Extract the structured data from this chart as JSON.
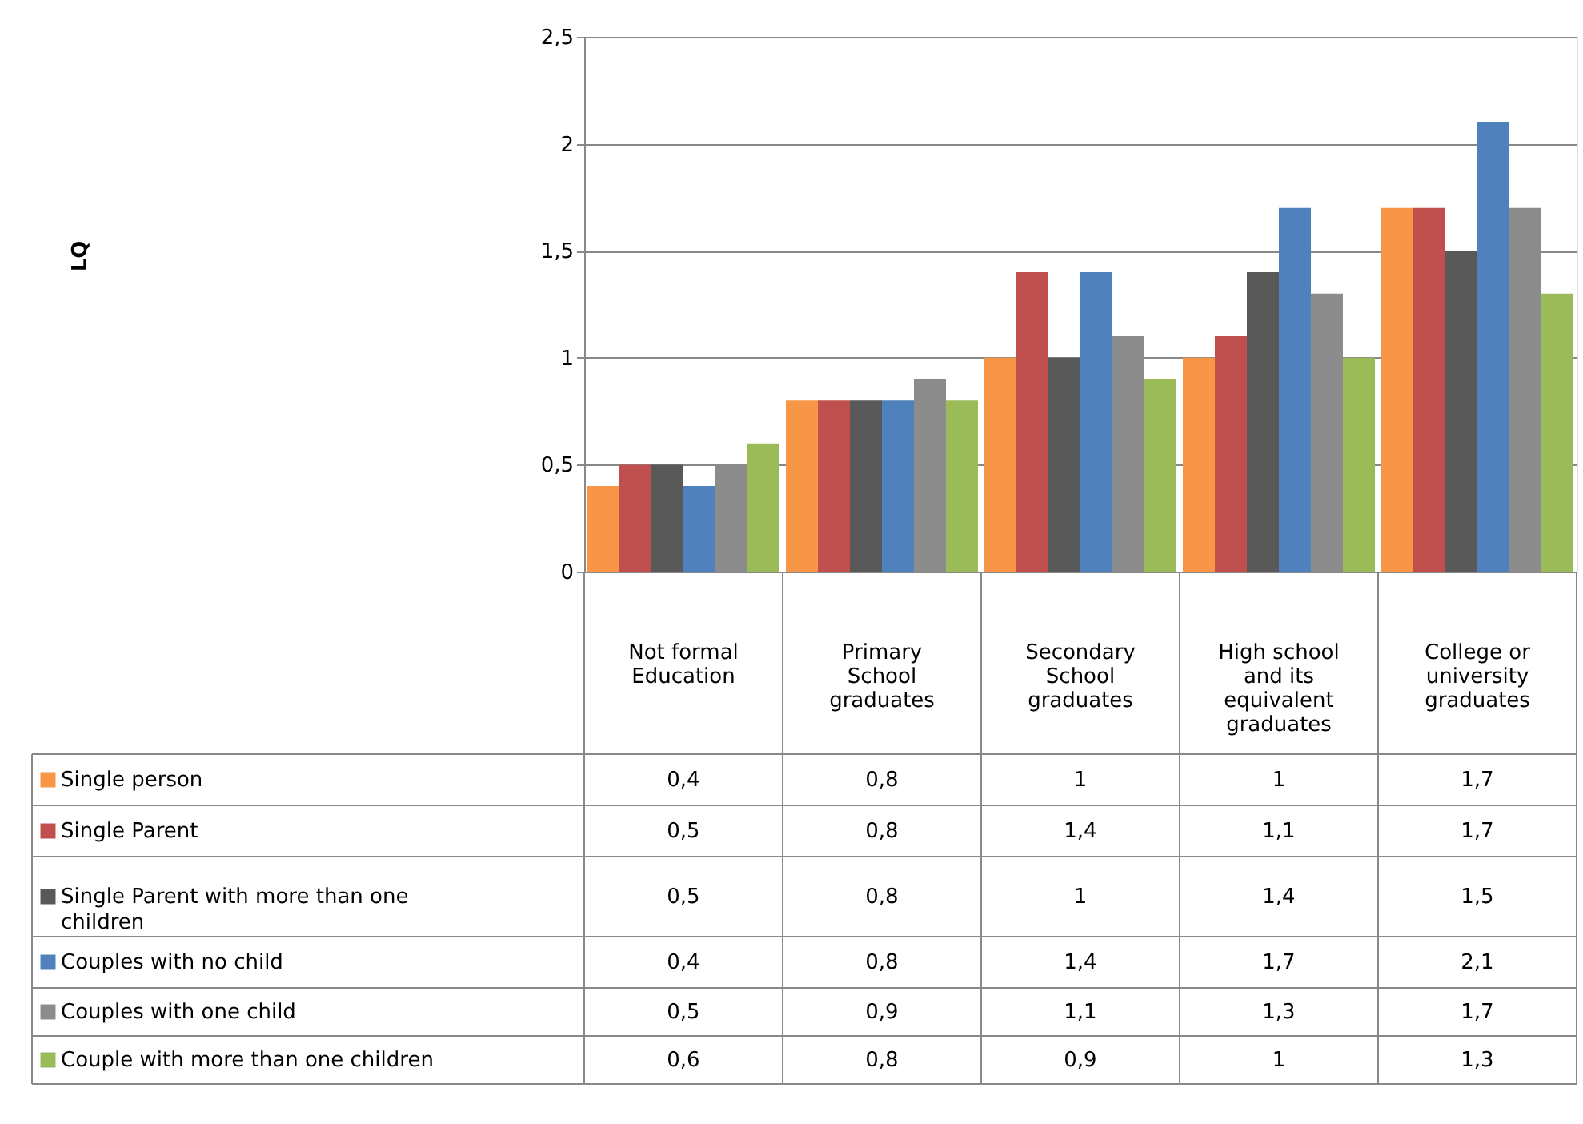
{
  "chart_data": {
    "type": "bar",
    "annotations": [
      "LQ"
    ],
    "categories": [
      "Not formal Education",
      "Primary School graduates",
      "Secondary School graduates",
      "High school and its equivalent graduates",
      "College or university graduates"
    ],
    "series": [
      {
        "name": "Single person",
        "color": "#f79646",
        "values": [
          0.4,
          0.8,
          1,
          1,
          1.7
        ],
        "value_labels": [
          "0,4",
          "0,8",
          "1",
          "1",
          "1,7"
        ]
      },
      {
        "name": "Single Parent",
        "color": "#c0504d",
        "values": [
          0.5,
          0.8,
          1.4,
          1.1,
          1.7
        ],
        "value_labels": [
          "0,5",
          "0,8",
          "1,4",
          "1,1",
          "1,7"
        ]
      },
      {
        "name": "Single Parent with more than one children",
        "color": "#595959",
        "values": [
          0.5,
          0.8,
          1,
          1.4,
          1.5
        ],
        "value_labels": [
          "0,5",
          "0,8",
          "1",
          "1,4",
          "1,5"
        ]
      },
      {
        "name": "Couples with no child",
        "color": "#4f81bd",
        "values": [
          0.4,
          0.8,
          1.4,
          1.7,
          2.1
        ],
        "value_labels": [
          "0,4",
          "0,8",
          "1,4",
          "1,7",
          "2,1"
        ]
      },
      {
        "name": "Couples with one child",
        "color": "#8c8c8c",
        "values": [
          0.5,
          0.9,
          1.1,
          1.3,
          1.7
        ],
        "value_labels": [
          "0,5",
          "0,9",
          "1,1",
          "1,3",
          "1,7"
        ]
      },
      {
        "name": "Couple with more than one children",
        "color": "#9bbb59",
        "values": [
          0.6,
          0.8,
          0.9,
          1,
          1.3
        ],
        "value_labels": [
          "0,6",
          "0,8",
          "0,9",
          "1",
          "1,3"
        ]
      }
    ],
    "ylim": [
      0,
      2.5
    ],
    "yticks": [
      0,
      {
        "value": 0.5,
        "label": "0,5"
      },
      1,
      {
        "value": 1.5,
        "label": "1,5"
      },
      2,
      {
        "value": 2.5,
        "label": "2,5"
      }
    ],
    "grid": "y",
    "legend": "bottom"
  }
}
